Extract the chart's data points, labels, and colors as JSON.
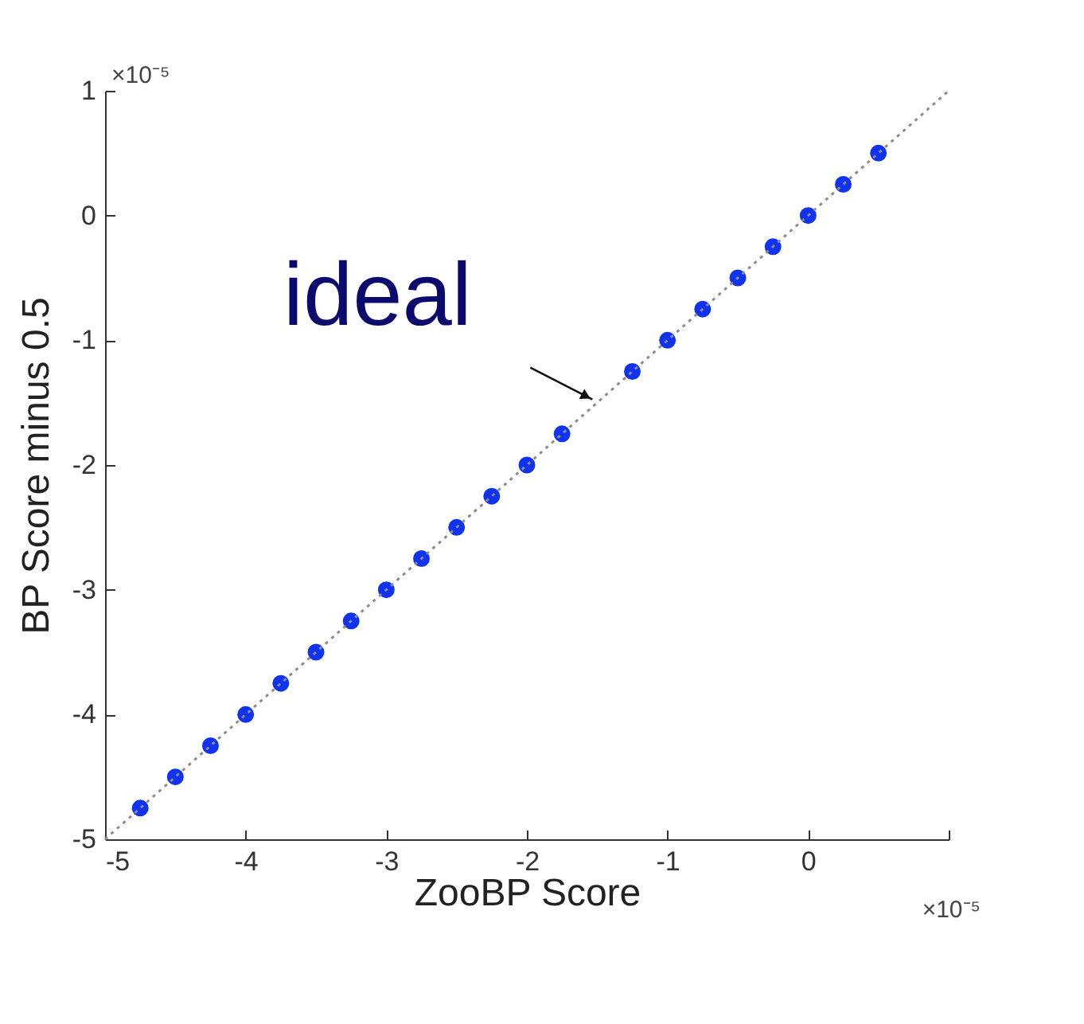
{
  "chart_data": {
    "type": "scatter",
    "xlabel": "ZooBP Score",
    "ylabel": "BP Score minus 0.5",
    "annotations": [
      "×10⁻⁵",
      "×10⁻⁵",
      {
        "text": "ideal",
        "x": -1.5,
        "y": -1.5
      }
    ],
    "xlim": [
      -5,
      1
    ],
    "ylim": [
      -5,
      1
    ],
    "xticks": [
      -5,
      -4,
      -3,
      -2,
      -1,
      0,
      {
        "value": 1,
        "label": null
      }
    ],
    "yticks": [
      -5,
      -4,
      -3,
      -2,
      -1,
      0,
      1
    ],
    "grid": false,
    "marker": "circle",
    "series": [
      {
        "color": "#1033f0",
        "x": [
          -4.75,
          -4.5,
          -4.25,
          -4,
          -3.75,
          -3.5,
          -3.25,
          -3,
          -2.75,
          -2.5,
          -2.25,
          -2,
          -1.75,
          -1.25,
          -1,
          -0.75,
          -0.5,
          -0.25,
          0,
          0.25,
          0.5
        ],
        "values": [
          -4.75,
          -4.5,
          -4.25,
          -4,
          -3.75,
          -3.5,
          -3.25,
          -3,
          -2.75,
          -2.5,
          -2.25,
          -2,
          -1.75,
          -1.25,
          -1,
          -0.75,
          -0.5,
          -0.25,
          0,
          0.25,
          0.5
        ]
      },
      {
        "type": "line",
        "color": "#8c8c8c",
        "line_style": "dotted",
        "marker": "none",
        "x": [
          -5,
          1
        ],
        "values": [
          -5,
          1
        ]
      }
    ]
  }
}
